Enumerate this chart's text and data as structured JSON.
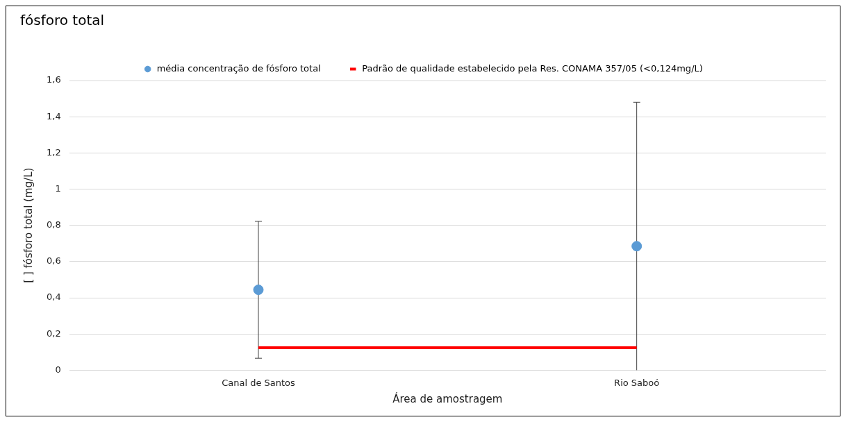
{
  "chart_data": {
    "type": "scatter",
    "title": "fósforo total",
    "xlabel": "Área de amostragem",
    "ylabel": "[ ] fósforo total (mg/L)",
    "categories": [
      "Canal de Santos",
      "Rio Saboó"
    ],
    "series": [
      {
        "name": "média concentração de fósforo total",
        "marker": "circle",
        "color": "#5b9bd5",
        "values": [
          0.444,
          0.685
        ],
        "errors": [
          [
            0.066,
            0.822
          ],
          [
            0,
            1.48
          ]
        ]
      },
      {
        "name": "Padrão de qualidade estabelecido pela Res. CONAMA 357/05 (<0,124mg/L)",
        "type": "line",
        "marker": "none",
        "color": "#ff0000",
        "values": [
          0.124,
          0.124
        ]
      }
    ],
    "ylim": [
      0,
      1.6
    ],
    "yticks": [
      {
        "value": 0,
        "label": "0"
      },
      {
        "value": 0.2,
        "label": "0,2"
      },
      {
        "value": 0.4,
        "label": "0,4"
      },
      {
        "value": 0.6,
        "label": "0,6"
      },
      {
        "value": 0.8,
        "label": "0,8"
      },
      {
        "value": 1,
        "label": "1"
      },
      {
        "value": 1.2,
        "label": "1,2"
      },
      {
        "value": 1.4,
        "label": "1,4"
      },
      {
        "value": 1.6,
        "label": "1,6"
      }
    ],
    "grid": "y",
    "legend": "top",
    "line_style": "solid"
  }
}
